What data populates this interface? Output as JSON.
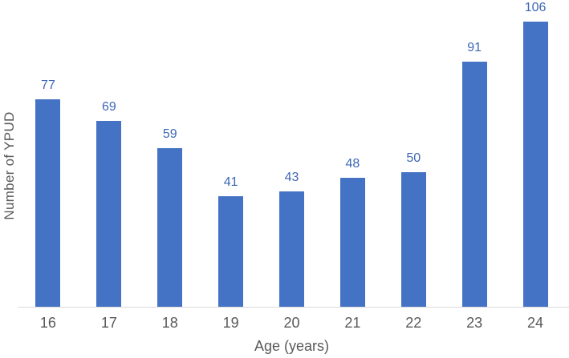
{
  "chart_data": {
    "type": "bar",
    "title": "",
    "categories": [
      "16",
      "17",
      "18",
      "19",
      "20",
      "21",
      "22",
      "23",
      "24"
    ],
    "values": [
      77,
      69,
      59,
      41,
      43,
      48,
      50,
      91,
      106
    ],
    "xlabel": "Age (years)",
    "ylabel": "Number of YPUD",
    "ylim": [
      0,
      114
    ],
    "grid": false,
    "legend": "none",
    "data_labels": true,
    "colors": {
      "bar": "#4472C4",
      "data_label": "#3E68B5",
      "axis_line": "#D9D9D9",
      "axis_text": "#595959"
    }
  }
}
